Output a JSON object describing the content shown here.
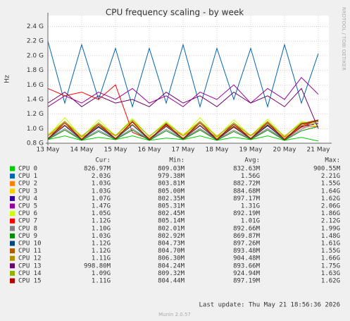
{
  "chart_data": {
    "type": "line",
    "title": "CPU frequency scaling - by week",
    "y_label": "Hz",
    "side_text": "RRDTOOL / TOBI OETIKER",
    "categories": [
      "13 May",
      null,
      "14 May",
      null,
      "15 May",
      null,
      "16 May",
      null,
      "17 May",
      null,
      "18 May",
      null,
      "19 May",
      null,
      "20 May",
      null,
      "21 May"
    ],
    "ylim": [
      800000000.0,
      2550000000.0
    ],
    "yticks": [
      {
        "value": 800000000.0,
        "label": "0.8 G"
      },
      {
        "value": 1000000000.0,
        "label": "1.0 G"
      },
      {
        "value": 1200000000.0,
        "label": "1.2 G"
      },
      {
        "value": 1400000000.0,
        "label": "1.4 G"
      },
      {
        "value": 1600000000.0,
        "label": "1.6 G"
      },
      {
        "value": 1800000000.0,
        "label": "1.8 G"
      },
      {
        "value": 2000000000.0,
        "label": "2.0 G"
      },
      {
        "value": 2200000000.0,
        "label": "2.2 G"
      },
      {
        "value": 2400000000.0,
        "label": "2.4 G"
      }
    ],
    "grid": true,
    "legend_headers": [
      "Cur:",
      "Min:",
      "Avg:",
      "Max:"
    ],
    "series": [
      {
        "name": "CPU 0",
        "color": "#00cc00",
        "cur": "826.97M",
        "min": "809.03M",
        "avg": "832.63M",
        "max": "900.55M",
        "values": [
          850000000.0,
          900000000.0,
          840000000.0,
          880000000.0,
          850000000.0,
          900000000.0,
          840000000.0,
          870000000.0,
          850000000.0,
          900000000.0,
          840000000.0,
          880000000.0,
          850000000.0,
          900000000.0,
          840000000.0,
          880000000.0,
          830000000.0
        ]
      },
      {
        "name": "CPU 1",
        "color": "#0066b3",
        "cur": "2.03G",
        "min": "979.38M",
        "avg": "1.56G",
        "max": "2.21G",
        "values": [
          2200000000.0,
          1350000000.0,
          2150000000.0,
          1400000000.0,
          2100000000.0,
          1300000000.0,
          2100000000.0,
          1350000000.0,
          2150000000.0,
          1300000000.0,
          2100000000.0,
          1400000000.0,
          2100000000.0,
          1300000000.0,
          2150000000.0,
          1350000000.0,
          2030000000.0
        ]
      },
      {
        "name": "CPU 2",
        "color": "#ff8000",
        "cur": "1.03G",
        "min": "803.81M",
        "avg": "882.72M",
        "max": "1.55G",
        "values": [
          900000000.0,
          1050000000.0,
          880000000.0,
          1020000000.0,
          900000000.0,
          1050000000.0,
          870000000.0,
          1030000000.0,
          900000000.0,
          1040000000.0,
          880000000.0,
          1020000000.0,
          900000000.0,
          1050000000.0,
          880000000.0,
          1020000000.0,
          1030000000.0
        ]
      },
      {
        "name": "CPU 3",
        "color": "#ffcc00",
        "cur": "1.03G",
        "min": "805.00M",
        "avg": "884.68M",
        "max": "1.64G",
        "values": [
          920000000.0,
          1100000000.0,
          900000000.0,
          1080000000.0,
          910000000.0,
          1100000000.0,
          900000000.0,
          1060000000.0,
          920000000.0,
          1100000000.0,
          900000000.0,
          1080000000.0,
          910000000.0,
          1090000000.0,
          900000000.0,
          1070000000.0,
          1030000000.0
        ]
      },
      {
        "name": "CPU 4",
        "color": "#330099",
        "cur": "1.07G",
        "min": "802.35M",
        "avg": "897.17M",
        "max": "1.62G",
        "values": [
          860000000.0,
          1040000000.0,
          850000000.0,
          1020000000.0,
          860000000.0,
          1050000000.0,
          850000000.0,
          1030000000.0,
          860000000.0,
          1040000000.0,
          850000000.0,
          1020000000.0,
          860000000.0,
          1040000000.0,
          850000000.0,
          1030000000.0,
          1070000000.0
        ]
      },
      {
        "name": "CPU 5",
        "color": "#990099",
        "cur": "1.47G",
        "min": "805.31M",
        "avg": "1.31G",
        "max": "2.06G",
        "values": [
          1300000000.0,
          1450000000.0,
          1350000000.0,
          1500000000.0,
          1400000000.0,
          1550000000.0,
          1350000000.0,
          1450000000.0,
          1300000000.0,
          1500000000.0,
          1400000000.0,
          1600000000.0,
          1350000000.0,
          1550000000.0,
          1400000000.0,
          1700000000.0,
          1470000000.0
        ]
      },
      {
        "name": "CPU 6",
        "color": "#ccff00",
        "cur": "1.05G",
        "min": "802.45M",
        "avg": "892.19M",
        "max": "1.86G",
        "values": [
          900000000.0,
          1150000000.0,
          880000000.0,
          1120000000.0,
          900000000.0,
          1140000000.0,
          890000000.0,
          1100000000.0,
          900000000.0,
          1150000000.0,
          880000000.0,
          1120000000.0,
          900000000.0,
          1130000000.0,
          890000000.0,
          1100000000.0,
          1050000000.0
        ]
      },
      {
        "name": "CPU 7",
        "color": "#ff0000",
        "cur": "1.12G",
        "min": "805.14M",
        "avg": "1.01G",
        "max": "2.12G",
        "values": [
          1550000000.0,
          1450000000.0,
          1500000000.0,
          1400000000.0,
          1600000000.0,
          950000000.0,
          850000000.0,
          1050000000.0,
          860000000.0,
          1000000000.0,
          850000000.0,
          1020000000.0,
          860000000.0,
          1000000000.0,
          850000000.0,
          1020000000.0,
          1120000000.0
        ]
      },
      {
        "name": "CPU 8",
        "color": "#808080",
        "cur": "1.10G",
        "min": "802.01M",
        "avg": "892.66M",
        "max": "1.99G",
        "values": [
          860000000.0,
          1000000000.0,
          850000000.0,
          980000000.0,
          860000000.0,
          1000000000.0,
          850000000.0,
          990000000.0,
          860000000.0,
          1000000000.0,
          850000000.0,
          980000000.0,
          860000000.0,
          1000000000.0,
          850000000.0,
          990000000.0,
          1100000000.0
        ]
      },
      {
        "name": "CPU 9",
        "color": "#008f00",
        "cur": "1.03G",
        "min": "802.92M",
        "avg": "869.87M",
        "max": "1.48G",
        "values": [
          850000000.0,
          980000000.0,
          840000000.0,
          960000000.0,
          850000000.0,
          980000000.0,
          840000000.0,
          970000000.0,
          850000000.0,
          980000000.0,
          840000000.0,
          960000000.0,
          850000000.0,
          980000000.0,
          840000000.0,
          970000000.0,
          1030000000.0
        ]
      },
      {
        "name": "CPU 10",
        "color": "#00487d",
        "cur": "1.12G",
        "min": "804.73M",
        "avg": "897.26M",
        "max": "1.61G",
        "values": [
          860000000.0,
          1050000000.0,
          850000000.0,
          1030000000.0,
          860000000.0,
          1050000000.0,
          850000000.0,
          1040000000.0,
          860000000.0,
          1050000000.0,
          850000000.0,
          1030000000.0,
          860000000.0,
          1050000000.0,
          850000000.0,
          1040000000.0,
          1120000000.0
        ]
      },
      {
        "name": "CPU 11",
        "color": "#b35a00",
        "cur": "1.12G",
        "min": "804.70M",
        "avg": "893.48M",
        "max": "1.55G",
        "values": [
          860000000.0,
          1100000000.0,
          850000000.0,
          1080000000.0,
          860000000.0,
          1100000000.0,
          850000000.0,
          1070000000.0,
          860000000.0,
          1100000000.0,
          850000000.0,
          1080000000.0,
          860000000.0,
          1100000000.0,
          850000000.0,
          1070000000.0,
          1120000000.0
        ]
      },
      {
        "name": "CPU 12",
        "color": "#b38f00",
        "cur": "1.11G",
        "min": "806.30M",
        "avg": "904.48M",
        "max": "1.66G",
        "values": [
          870000000.0,
          1050000000.0,
          860000000.0,
          1040000000.0,
          870000000.0,
          1060000000.0,
          860000000.0,
          1040000000.0,
          870000000.0,
          1050000000.0,
          860000000.0,
          1040000000.0,
          870000000.0,
          1060000000.0,
          860000000.0,
          1040000000.0,
          1110000000.0
        ]
      },
      {
        "name": "CPU 13",
        "color": "#6b006b",
        "cur": "998.80M",
        "min": "804.24M",
        "avg": "893.66M",
        "max": "1.75G",
        "values": [
          1350000000.0,
          1500000000.0,
          1300000000.0,
          1450000000.0,
          1350000000.0,
          1400000000.0,
          1300000000.0,
          1500000000.0,
          1350000000.0,
          1450000000.0,
          1300000000.0,
          1500000000.0,
          1350000000.0,
          1450000000.0,
          1300000000.0,
          1550000000.0,
          1000000000.0
        ]
      },
      {
        "name": "CPU 14",
        "color": "#8fb300",
        "cur": "1.09G",
        "min": "809.32M",
        "avg": "924.94M",
        "max": "1.63G",
        "values": [
          900000000.0,
          1100000000.0,
          890000000.0,
          1080000000.0,
          900000000.0,
          1120000000.0,
          890000000.0,
          1080000000.0,
          900000000.0,
          1100000000.0,
          890000000.0,
          1080000000.0,
          900000000.0,
          1100000000.0,
          890000000.0,
          1080000000.0,
          1090000000.0
        ]
      },
      {
        "name": "CPU 15",
        "color": "#b30000",
        "cur": "1.11G",
        "min": "804.44M",
        "avg": "897.19M",
        "max": "1.62G",
        "values": [
          860000000.0,
          1080000000.0,
          850000000.0,
          1060000000.0,
          860000000.0,
          1090000000.0,
          850000000.0,
          1060000000.0,
          860000000.0,
          1080000000.0,
          850000000.0,
          1060000000.0,
          860000000.0,
          1080000000.0,
          850000000.0,
          1060000000.0,
          1110000000.0
        ]
      }
    ],
    "last_update": "Last update: Thu May 21 18:56:36 2026",
    "footer": "Munin 2.0.57"
  }
}
